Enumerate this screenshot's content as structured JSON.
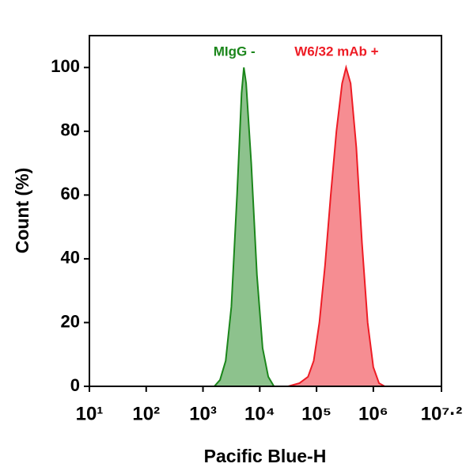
{
  "chart_data": {
    "type": "histogram-area",
    "x_label": "Pacific Blue-H",
    "y_label": "Count  (%)",
    "x_log": true,
    "xlim": [
      10,
      15848932
    ],
    "xticks": [
      {
        "value": 10,
        "label": "10¹"
      },
      {
        "value": 100,
        "label": "10²"
      },
      {
        "value": 1000,
        "label": "10³"
      },
      {
        "value": 10000,
        "label": "10⁴"
      },
      {
        "value": 100000,
        "label": "10⁵"
      },
      {
        "value": 1000000,
        "label": "10⁶"
      },
      {
        "value": 15848932,
        "label": "10⁷·²"
      }
    ],
    "ylim": [
      0,
      110
    ],
    "yticks": [
      0,
      20,
      40,
      60,
      80,
      100
    ],
    "series": [
      {
        "name": "MIgG -",
        "color": "#1b861b",
        "x": [
          1585,
          1995,
          2512,
          3162,
          3981,
          4786,
          5248,
          5754,
          7079,
          8913,
          11220,
          14125,
          17783
        ],
        "values": [
          0,
          2,
          8,
          25,
          60,
          92,
          100,
          95,
          70,
          35,
          12,
          3,
          0
        ]
      },
      {
        "name": "W6/32 mAb  +",
        "color": "#ee1c25",
        "x": [
          31623,
          50119,
          70795,
          89125,
          112202,
          141254,
          177828,
          223872,
          281838,
          331131,
          398107,
          501187,
          630957,
          794328,
          1000000,
          1258925,
          1584893
        ],
        "values": [
          0,
          1,
          3,
          8,
          20,
          38,
          60,
          80,
          95,
          100,
          95,
          75,
          45,
          20,
          6,
          1,
          0
        ]
      }
    ]
  }
}
